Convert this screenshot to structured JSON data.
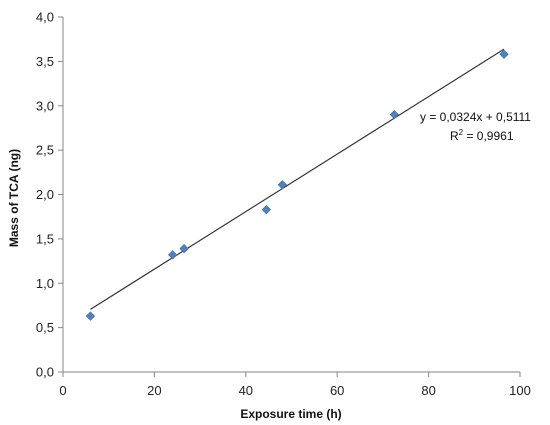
{
  "chart_data": {
    "type": "scatter",
    "xlabel": "Exposure time (h)",
    "ylabel": "Mass of TCA (ng)",
    "xlim": [
      0,
      100
    ],
    "ylim": [
      0,
      4.0
    ],
    "x_ticks": [
      0,
      20,
      40,
      60,
      80,
      100
    ],
    "y_ticks": [
      0,
      0.5,
      1.0,
      1.5,
      2.0,
      2.5,
      3.0,
      3.5,
      4.0
    ],
    "x_tick_labels": [
      "0",
      "20",
      "40",
      "60",
      "80",
      "100"
    ],
    "y_tick_labels": [
      "0,0",
      "0,5",
      "1,0",
      "1,5",
      "2,0",
      "2,5",
      "3,0",
      "3,5",
      "4,0"
    ],
    "grid": false,
    "series": [
      {
        "marker": "diamond",
        "color": "#4f81bd",
        "points": [
          {
            "x": 6,
            "y": 0.63
          },
          {
            "x": 24,
            "y": 1.32
          },
          {
            "x": 26.5,
            "y": 1.39
          },
          {
            "x": 44.5,
            "y": 1.83
          },
          {
            "x": 48,
            "y": 2.11
          },
          {
            "x": 72.5,
            "y": 2.9
          },
          {
            "x": 96.5,
            "y": 3.58
          }
        ]
      }
    ],
    "trendline": {
      "slope": 0.0324,
      "intercept": 0.5111,
      "x_range": [
        6,
        96.5
      ],
      "color": "#333333"
    },
    "annotations": {
      "equation": "y = 0,0324x + 0,5111",
      "r2_prefix": "R",
      "r2_sup": "2",
      "r2_value": " = 0,9961"
    }
  }
}
